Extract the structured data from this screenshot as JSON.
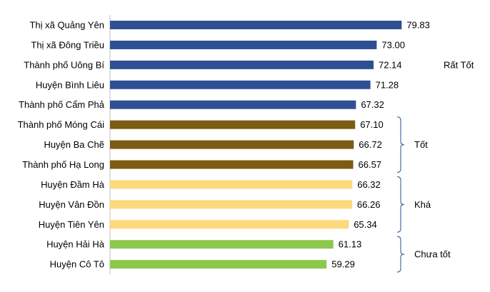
{
  "chart_data": {
    "type": "bar",
    "orientation": "horizontal",
    "title": "",
    "xlabel": "",
    "ylabel": "",
    "xlim": [
      0,
      80
    ],
    "grid": false,
    "legend": "none",
    "categories": [
      "Thị xã Quảng Yên",
      "Thị xã Đông Triều",
      "Thành phố Uông Bí",
      "Huyện Bình Liêu",
      "Thành phố Cẩm Phả",
      "Thành phố Móng Cái",
      "Huyện Ba Chẽ",
      "Thành phố Hạ Long",
      "Huyện Đầm Hà",
      "Huyện Vân Đồn",
      "Huyện Tiên Yên",
      "Huyện Hải Hà",
      "Huyện Cô Tô"
    ],
    "values": [
      79.83,
      73.0,
      72.14,
      71.28,
      67.32,
      67.1,
      66.72,
      66.57,
      66.32,
      66.26,
      65.34,
      61.13,
      59.29
    ],
    "value_labels": [
      "79.83",
      "73.00",
      "72.14",
      "71.28",
      "67.32",
      "67.10",
      "66.72",
      "66.57",
      "66.32",
      "66.26",
      "65.34",
      "61.13",
      "59.29"
    ],
    "groups": [
      {
        "label": "Rất Tốt",
        "from": 0,
        "to": 4,
        "color": "#2f4f95",
        "bracket": false
      },
      {
        "label": "Tốt",
        "from": 5,
        "to": 7,
        "color": "#7b5c12",
        "bracket": true
      },
      {
        "label": "Khá",
        "from": 8,
        "to": 10,
        "color": "#fcd97a",
        "bracket": true
      },
      {
        "label": "Chưa tốt",
        "from": 11,
        "to": 12,
        "color": "#8cc84b",
        "bracket": true
      }
    ]
  }
}
